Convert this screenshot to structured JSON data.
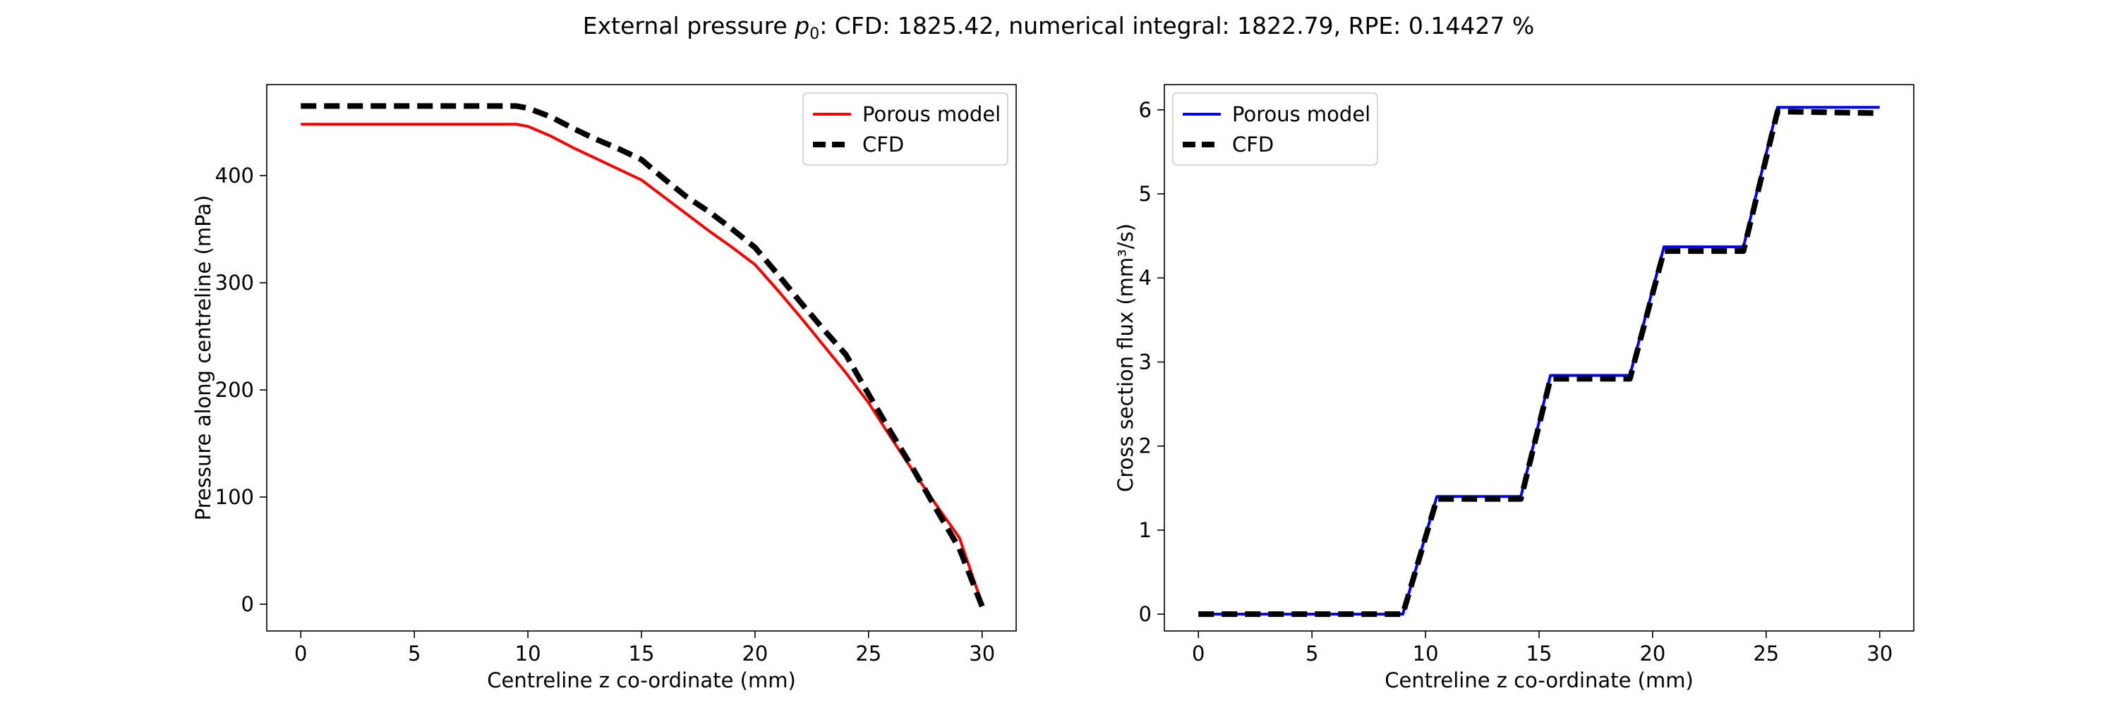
{
  "figure": {
    "title_prefix": "External pressure ",
    "title_symbol": "p",
    "title_subscript": "0",
    "title_suffix": ": CFD: 1825.42, numerical integral: 1822.79, RPE: 0.14427 %"
  },
  "chart_data": [
    {
      "type": "line",
      "xlabel": "Centreline z co-ordinate (mm)",
      "ylabel": "Pressure along centreline (mPa)",
      "xlim": [
        -1.5,
        31.5
      ],
      "ylim": [
        -25,
        485
      ],
      "xticks": [
        0,
        5,
        10,
        15,
        20,
        25,
        30
      ],
      "yticks": [
        0,
        100,
        200,
        300,
        400
      ],
      "grid": false,
      "legend_position": "top-right",
      "series": [
        {
          "name": "Porous model",
          "color": "#ff0000",
          "style": "solid",
          "x": [
            0,
            9.5,
            10,
            11,
            12,
            13,
            14,
            15,
            16,
            17,
            18,
            19,
            20,
            21,
            22,
            23,
            24,
            25,
            26,
            27,
            28,
            29,
            30
          ],
          "y": [
            448,
            448,
            446,
            437,
            426,
            416,
            406,
            396,
            380,
            364,
            348,
            333,
            317,
            293,
            268,
            242,
            216,
            188,
            155,
            123,
            92,
            62,
            0
          ]
        },
        {
          "name": "CFD",
          "color": "#000000",
          "style": "dashed",
          "x": [
            0,
            9.5,
            10,
            11,
            12,
            13,
            14,
            15,
            16,
            17,
            18,
            19,
            20,
            21,
            22,
            23,
            24,
            25,
            26,
            27,
            28,
            29,
            30
          ],
          "y": [
            465,
            465,
            463,
            455,
            444,
            434,
            425,
            415,
            397,
            380,
            366,
            350,
            333,
            308,
            282,
            257,
            233,
            196,
            160,
            125,
            88,
            52,
            -2
          ]
        }
      ]
    },
    {
      "type": "line",
      "xlabel": "Centreline z co-ordinate (mm)",
      "ylabel": "Cross section flux (mm³/s)",
      "xlim": [
        -1.5,
        31.5
      ],
      "ylim": [
        -0.2,
        6.3
      ],
      "xticks": [
        0,
        5,
        10,
        15,
        20,
        25,
        30
      ],
      "yticks": [
        0,
        1,
        2,
        3,
        4,
        5,
        6
      ],
      "grid": false,
      "legend_position": "top-left",
      "series": [
        {
          "name": "Porous model",
          "color": "#0000ff",
          "style": "solid",
          "x": [
            0,
            9,
            10.5,
            14.2,
            15.5,
            19,
            20.5,
            24,
            25.5,
            30
          ],
          "y": [
            0,
            0,
            1.4,
            1.4,
            2.84,
            2.84,
            4.37,
            4.37,
            6.03,
            6.03
          ]
        },
        {
          "name": "CFD",
          "color": "#000000",
          "style": "dashed",
          "x": [
            0,
            9,
            10.5,
            14.2,
            15.5,
            19,
            20.5,
            24,
            25.5,
            30
          ],
          "y": [
            0,
            0,
            1.37,
            1.37,
            2.8,
            2.8,
            4.32,
            4.32,
            5.98,
            5.96
          ]
        }
      ]
    }
  ]
}
